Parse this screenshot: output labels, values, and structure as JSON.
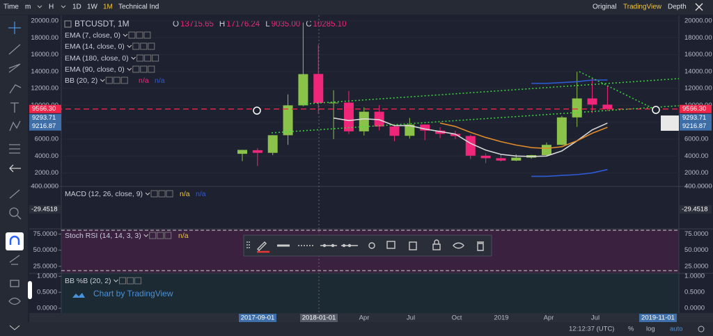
{
  "toolbar": {
    "left": [
      "Time",
      "m",
      "H",
      "1D",
      "1W",
      "1M",
      "Technical Ind"
    ],
    "right": [
      "Original",
      "TradingView",
      "Depth"
    ]
  },
  "legend": {
    "symbol": "BTCUSDT, 1M",
    "ohlc": [
      [
        "O",
        "13715.65"
      ],
      [
        "H",
        "17176.24"
      ],
      [
        "L",
        "9035.00"
      ],
      [
        "C",
        "10285.10"
      ]
    ],
    "indicators": [
      "EMA (7, close, 0)",
      "EMA (14, close, 0)",
      "EMA (180, close, 0)",
      "EMA (90, close, 0)",
      "BB (20, 2)"
    ],
    "bb_status": [
      "n/a",
      "n/a"
    ]
  },
  "chart_data": {
    "type": "candlestick",
    "up_color": "#8bc34a",
    "down_color": "#f0267a",
    "open": [
      4261,
      4690,
      4378,
      6463,
      10000,
      13715.65,
      10285,
      10326,
      6923,
      9246,
      7494,
      6391,
      7725,
      7011,
      6626,
      6371,
      4041,
      3742,
      3458,
      3813,
      4106,
      5321,
      8574,
      10817,
      10086
    ],
    "high": [
      4745,
      4939,
      6470,
      11300,
      19798,
      17176.24,
      11786,
      11700,
      9759,
      10020,
      7754,
      8507,
      7750,
      7410,
      7000,
      6540,
      4313,
      4140,
      4198,
      4140,
      5600,
      8739,
      13970,
      13199,
      12327
    ],
    "low": [
      3400,
      2817,
      4110,
      5325,
      9900,
      9035,
      6000,
      6600,
      6430,
      7034,
      5750,
      6070,
      5880,
      6111,
      6000,
      3652,
      3156,
      3349,
      3400,
      3690,
      4031,
      5286,
      7446,
      9080,
      9350
    ],
    "close": [
      4724,
      4378,
      6463,
      10000,
      13700,
      10285.1,
      10326,
      6923,
      9246,
      7494,
      6391,
      7725,
      7011,
      6626,
      6371,
      4041,
      3742,
      3458,
      3813,
      4106,
      5321,
      8574,
      10817,
      10086,
      9566.3
    ],
    "series": [
      {
        "color": "#d8d8d8",
        "values": [
          null,
          null,
          null,
          null,
          null,
          null,
          8500,
          8200,
          8400,
          8300,
          7600,
          7600,
          7200,
          6900,
          6600,
          5500,
          4700,
          4200,
          4000,
          3950,
          4000,
          4600,
          5800,
          7100,
          7900
        ]
      },
      {
        "color": "#e08a2c",
        "values": [
          null,
          null,
          null,
          null,
          null,
          null,
          null,
          null,
          null,
          null,
          null,
          null,
          null,
          7900,
          7500,
          6800,
          6200,
          5700,
          5300,
          5000,
          4900,
          5100,
          5800,
          6700,
          7400
        ]
      },
      {
        "color": "#2f5bd6",
        "values": [
          null,
          null,
          null,
          null,
          null,
          null,
          null,
          null,
          null,
          null,
          null,
          null,
          null,
          null,
          null,
          null,
          null,
          null,
          null,
          12600,
          12600,
          12700,
          12800,
          13000,
          13000
        ]
      },
      {
        "color": "#2f5bd6",
        "values": [
          null,
          null,
          null,
          null,
          null,
          null,
          null,
          null,
          null,
          null,
          null,
          null,
          null,
          null,
          null,
          null,
          null,
          null,
          null,
          1600,
          1600,
          1700,
          1800,
          2000,
          2400
        ]
      }
    ],
    "ylim": [
      400,
      20660
    ],
    "yticks": [
      {
        "value": 20000,
        "label": "20000.00"
      },
      {
        "value": 18000,
        "label": "18000.00"
      },
      {
        "value": 16000,
        "label": "16000.00"
      },
      {
        "value": 14000,
        "label": "14000.00"
      },
      {
        "value": 12000,
        "label": "12000.00"
      },
      {
        "value": 10000,
        "label": "10000.00"
      },
      {
        "value": 8000,
        "label": "8000.00"
      },
      {
        "value": 6000,
        "label": "6000.00"
      },
      {
        "value": 4000,
        "label": "4000.00"
      },
      {
        "value": 2000,
        "label": "2000.00"
      },
      {
        "value": 400,
        "label": "400.0000"
      }
    ],
    "last_price": {
      "value": 9566.3,
      "label": "9566.30"
    },
    "price_labels": [
      {
        "value": 9293.71,
        "label": "9293.71"
      },
      {
        "value": 9216.87,
        "label": "9216.87"
      }
    ]
  },
  "macd": {
    "title": "MACD (12, 26, close, 9)",
    "status": [
      "n/a",
      "n/a"
    ],
    "value": {
      "value": -29.4518,
      "label": "-29.4518"
    }
  },
  "stoch_rsi": {
    "title": "Stoch RSI (14, 14, 3, 3)",
    "status": "n/a",
    "ylim": [
      15,
      82
    ],
    "yticks": [
      {
        "value": 75,
        "label": "75.0000"
      },
      {
        "value": 50,
        "label": "50.0000"
      },
      {
        "value": 25,
        "label": "25.0000"
      }
    ]
  },
  "bb_percent_b": {
    "title": "BB %B (20, 2)",
    "ylim": [
      -0.15,
      1.07
    ],
    "yticks": [
      {
        "value": 1,
        "label": "1.0000"
      },
      {
        "value": 0.5,
        "label": "0.5000"
      },
      {
        "value": 0,
        "label": "0.0000"
      }
    ]
  },
  "watermark": "Chart by TradingView",
  "time_axis": [
    "2017-09-01",
    "2018-01-01",
    "Apr",
    "Jul",
    "Oct",
    "2019",
    "Apr",
    "Jul",
    "2019-11-01"
  ],
  "status_bar": {
    "clock": "12:12:37 (UTC)",
    "buttons": [
      "%",
      "log",
      "auto"
    ]
  }
}
